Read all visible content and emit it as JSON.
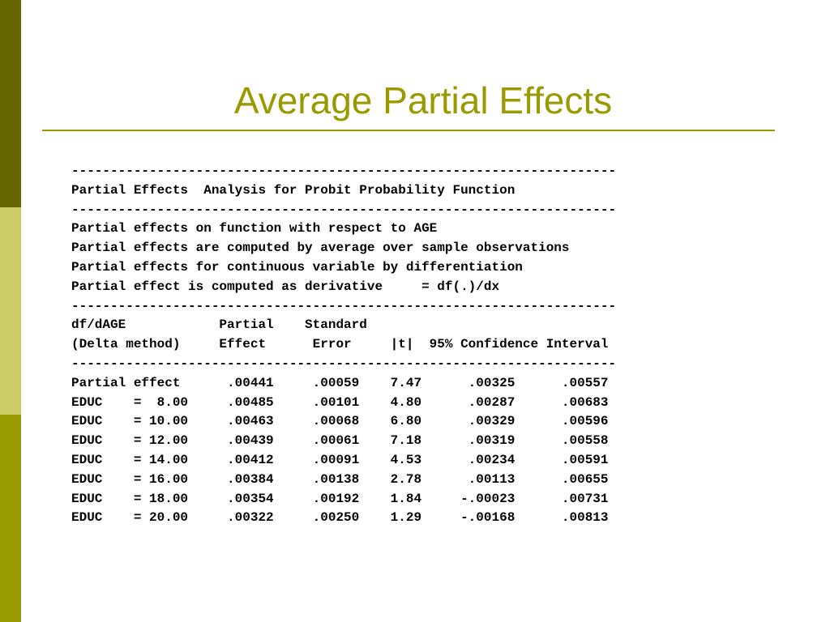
{
  "slide": {
    "title": "Average Partial Effects",
    "colors": {
      "accent": "#999900",
      "bar_dark": "#666600",
      "bar_light": "#cccc66",
      "bar_mid": "#999900",
      "text": "#000000"
    }
  },
  "output": {
    "lines": [
      "----------------------------------------------------------------------",
      "Partial Effects  Analysis for Probit Probability Function",
      "----------------------------------------------------------------------",
      "Partial effects on function with respect to AGE",
      "Partial effects are computed by average over sample observations",
      "Partial effects for continuous variable by differentiation",
      "Partial effect is computed as derivative     = df(.)/dx",
      "----------------------------------------------------------------------",
      "df/dAGE            Partial    Standard",
      "(Delta method)     Effect      Error     |t|  95% Confidence Interval",
      "----------------------------------------------------------------------",
      "Partial effect      .00441     .00059    7.47      .00325      .00557",
      "EDUC    =  8.00     .00485     .00101    4.80      .00287      .00683",
      "EDUC    = 10.00     .00463     .00068    6.80      .00329      .00596",
      "EDUC    = 12.00     .00439     .00061    7.18      .00319      .00558",
      "EDUC    = 14.00     .00412     .00091    4.53      .00234      .00591",
      "EDUC    = 16.00     .00384     .00138    2.78      .00113      .00655",
      "EDUC    = 18.00     .00354     .00192    1.84     -.00023      .00731",
      "EDUC    = 20.00     .00322     .00250    1.29     -.00168      .00813"
    ]
  }
}
